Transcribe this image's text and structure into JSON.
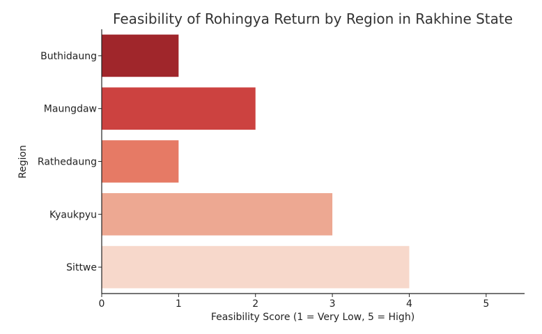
{
  "chart_data": {
    "type": "bar",
    "orientation": "horizontal",
    "title": "Feasibility of Rohingya Return by Region in Rakhine State",
    "xlabel": "Feasibility Score (1 = Very Low, 5 = High)",
    "ylabel": "Region",
    "categories": [
      "Buthidaung",
      "Maungdaw",
      "Rathedaung",
      "Kyaukpyu",
      "Sittwe"
    ],
    "values": [
      1,
      2,
      1,
      3,
      4
    ],
    "colors": [
      "#a0262b",
      "#cc4240",
      "#e67a65",
      "#eda892",
      "#f7d8cb"
    ],
    "xlim": [
      0,
      5.5
    ],
    "xticks": [
      0,
      1,
      2,
      3,
      4,
      5
    ],
    "grid": false,
    "legend": "none"
  }
}
